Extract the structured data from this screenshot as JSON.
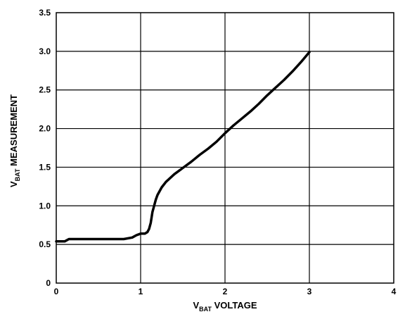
{
  "chart_data": {
    "type": "line",
    "title": "",
    "xlabel": {
      "prefix": "V",
      "subscript": "BAT",
      "suffix": " VOLTAGE"
    },
    "ylabel": {
      "prefix": "V",
      "subscript": "BAT",
      "suffix": " MEASUREMENT"
    },
    "xlim": [
      0,
      4
    ],
    "ylim": [
      0,
      3.5
    ],
    "x_ticks": [
      0,
      1,
      2,
      3,
      4
    ],
    "x_tick_labels": [
      "0",
      "1",
      "2",
      "3",
      "4"
    ],
    "y_ticks": [
      0,
      0.5,
      1.0,
      1.5,
      2.0,
      2.5,
      3.0,
      3.5
    ],
    "y_tick_labels": [
      "0",
      "0.5",
      "1.0",
      "1.5",
      "2.0",
      "2.5",
      "3.0",
      "3.5"
    ],
    "grid": true,
    "series": [
      {
        "x": [
          0,
          0.1,
          0.15,
          0.3,
          0.5,
          0.7,
          0.8,
          0.9,
          0.95,
          1.0,
          1.05,
          1.08,
          1.1,
          1.12,
          1.14,
          1.16,
          1.18,
          1.2,
          1.25,
          1.3,
          1.4,
          1.5,
          1.6,
          1.7,
          1.8,
          1.9,
          2.0,
          2.1,
          2.2,
          2.3,
          2.4,
          2.5,
          2.6,
          2.7,
          2.8,
          2.9,
          3.0
        ],
        "y": [
          0.54,
          0.54,
          0.57,
          0.57,
          0.57,
          0.57,
          0.57,
          0.59,
          0.62,
          0.64,
          0.64,
          0.66,
          0.7,
          0.78,
          0.92,
          1.0,
          1.08,
          1.14,
          1.24,
          1.31,
          1.41,
          1.49,
          1.57,
          1.66,
          1.74,
          1.83,
          1.94,
          2.04,
          2.13,
          2.22,
          2.32,
          2.43,
          2.53,
          2.63,
          2.74,
          2.86,
          2.99
        ],
        "color": "#000000"
      }
    ]
  }
}
